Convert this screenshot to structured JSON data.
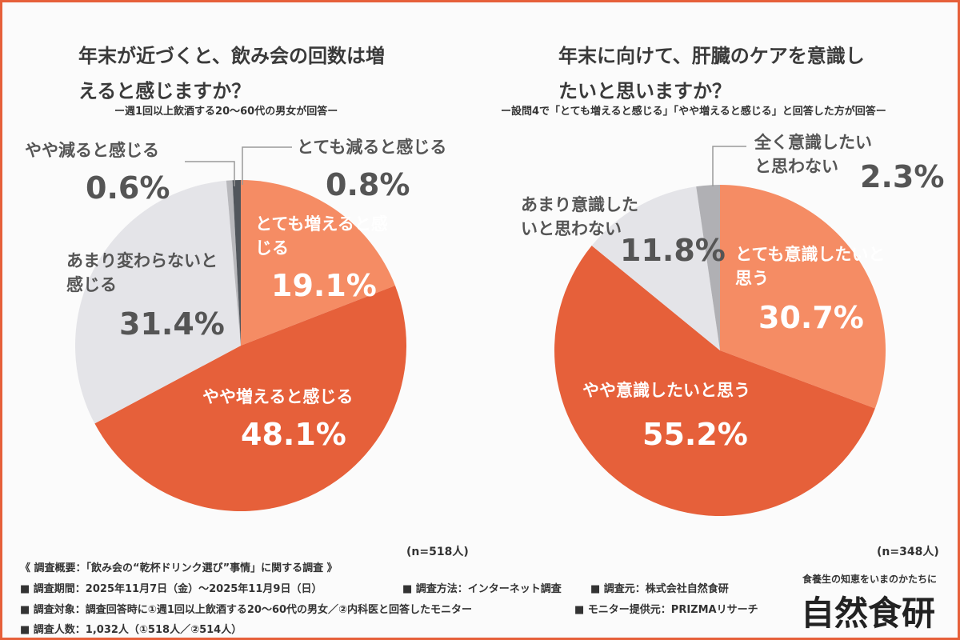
{
  "chart_data": [
    {
      "type": "pie",
      "title": "年末が近づくと、飲み会の回数は増えると感じますか？",
      "subtitle": "ー週1回以上飲酒する20〜60代の男女が回答ー",
      "categories": [
        "とても増えると感じる",
        "やや増えると感じる",
        "あまり変わらないと感じる",
        "やや減ると感じる",
        "とても減ると感じる"
      ],
      "values": [
        19.1,
        48.1,
        31.4,
        0.6,
        0.8
      ],
      "value_labels": [
        "19.1%",
        "48.1%",
        "31.4%",
        "0.6%",
        "0.8%"
      ],
      "colors": [
        "#f58c64",
        "#e6603a",
        "#e4e4e8",
        "#b8b8bc",
        "#51565c"
      ],
      "note": "(n=518人)"
    },
    {
      "type": "pie",
      "title": "年末に向けて、肝臓のケアを意識したいと思いますか？",
      "subtitle": "ー設問4で「とても増えると感じる」「やや増えると感じる」と回答した方が回答ー",
      "categories": [
        "とても意識したいと思う",
        "やや意識したいと思う",
        "あまり意識したいと思わない",
        "全く意識したいと思わない"
      ],
      "values": [
        30.7,
        55.2,
        11.8,
        2.3
      ],
      "value_labels": [
        "30.7%",
        "55.2%",
        "11.8%",
        "2.3%"
      ],
      "colors": [
        "#f58c64",
        "#e6603a",
        "#e4e4e8",
        "#b0b0b4"
      ],
      "note": "(n=348人)"
    }
  ],
  "survey": {
    "heading": "《 調査概要：「飲み会の“乾杯ドリンク選び”事情」に関する調査 》",
    "items": [
      "■ 調査期間：2025年11月7日（金）〜2025年11月9日（日）",
      "■ 調査方法：インターネット調査",
      "■ 調査元：株式会社自然食研",
      "■ 調査対象：調査回答時に①週1回以上飲酒する20〜60代の男女／②内科医と回答したモニター",
      "■ モニター提供元：PRIZMAリサーチ",
      "■ 調査人数：1,032人（①518人／②514人）"
    ]
  },
  "brand": {
    "tagline": "食養生の知恵をいまのかたちに",
    "name": "自然食研"
  }
}
